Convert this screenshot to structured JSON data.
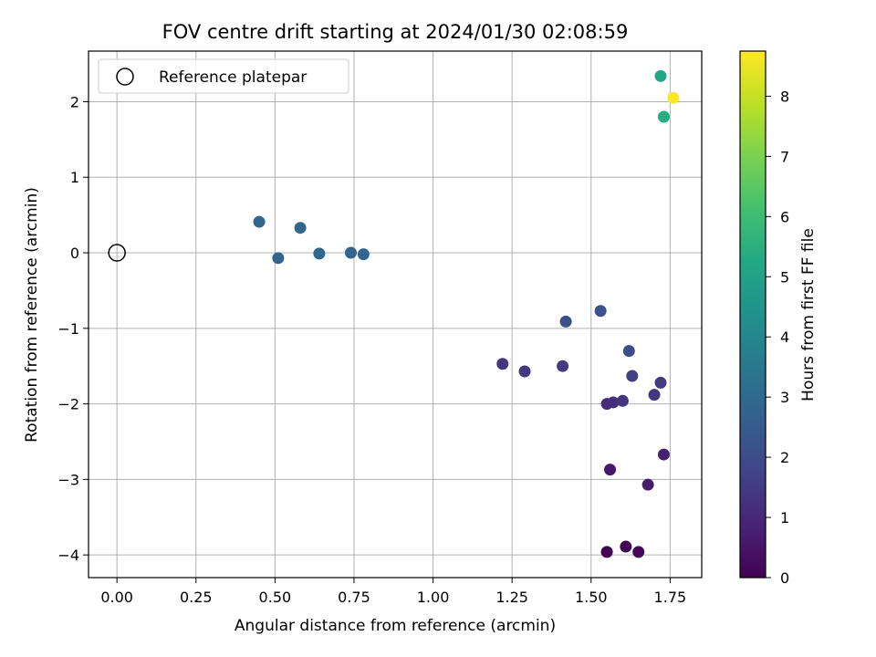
{
  "chart_data": {
    "type": "scatter",
    "title": "FOV centre drift starting at 2024/01/30 02:08:59",
    "xlabel": "Angular distance from reference (arcmin)",
    "ylabel": "Rotation from reference (arcmin)",
    "xlim": [
      -0.09,
      1.85
    ],
    "ylim": [
      -4.3,
      2.67
    ],
    "xticks": [
      0.0,
      0.25,
      0.5,
      0.75,
      1.0,
      1.25,
      1.5,
      1.75
    ],
    "xtick_labels": [
      "0.00",
      "0.25",
      "0.50",
      "0.75",
      "1.00",
      "1.25",
      "1.50",
      "1.75"
    ],
    "yticks": [
      -4,
      -3,
      -2,
      -1,
      0,
      1,
      2
    ],
    "ytick_labels": [
      "−4",
      "−3",
      "−2",
      "−1",
      "0",
      "1",
      "2"
    ],
    "grid": true,
    "legend": {
      "placement": "upper-left",
      "entries": [
        "Reference platepar"
      ]
    },
    "reference_point": {
      "x": 0.0,
      "y": 0.0
    },
    "colorbar": {
      "label": "Hours from first FF file",
      "colormap": "viridis",
      "range": [
        0,
        8.75
      ],
      "ticks": [
        0,
        1,
        2,
        3,
        4,
        5,
        6,
        7,
        8
      ],
      "tick_labels": [
        "0",
        "1",
        "2",
        "3",
        "4",
        "5",
        "6",
        "7",
        "8"
      ]
    },
    "points": [
      {
        "x": 1.55,
        "y": -3.96,
        "hours": 0.0
      },
      {
        "x": 1.61,
        "y": -3.89,
        "hours": 0.1
      },
      {
        "x": 1.65,
        "y": -3.96,
        "hours": 0.2
      },
      {
        "x": 1.56,
        "y": -2.87,
        "hours": 0.6
      },
      {
        "x": 1.68,
        "y": -3.07,
        "hours": 0.7
      },
      {
        "x": 1.73,
        "y": -2.67,
        "hours": 0.8
      },
      {
        "x": 1.55,
        "y": -2.0,
        "hours": 1.1
      },
      {
        "x": 1.57,
        "y": -1.98,
        "hours": 1.2
      },
      {
        "x": 1.6,
        "y": -1.96,
        "hours": 1.3
      },
      {
        "x": 1.7,
        "y": -1.88,
        "hours": 1.4
      },
      {
        "x": 1.72,
        "y": -1.72,
        "hours": 1.5
      },
      {
        "x": 1.22,
        "y": -1.47,
        "hours": 1.4
      },
      {
        "x": 1.29,
        "y": -1.57,
        "hours": 1.4
      },
      {
        "x": 1.41,
        "y": -1.5,
        "hours": 1.5
      },
      {
        "x": 1.63,
        "y": -1.63,
        "hours": 1.6
      },
      {
        "x": 1.62,
        "y": -1.3,
        "hours": 2.0
      },
      {
        "x": 1.42,
        "y": -0.91,
        "hours": 2.1
      },
      {
        "x": 1.53,
        "y": -0.77,
        "hours": 2.2
      },
      {
        "x": 0.45,
        "y": 0.41,
        "hours": 2.9
      },
      {
        "x": 0.51,
        "y": -0.07,
        "hours": 2.8
      },
      {
        "x": 0.58,
        "y": 0.33,
        "hours": 2.9
      },
      {
        "x": 0.64,
        "y": -0.01,
        "hours": 2.9
      },
      {
        "x": 0.74,
        "y": 0.0,
        "hours": 2.8
      },
      {
        "x": 0.78,
        "y": -0.02,
        "hours": 2.8
      },
      {
        "x": 1.72,
        "y": 2.34,
        "hours": 5.2
      },
      {
        "x": 1.73,
        "y": 1.8,
        "hours": 5.4
      },
      {
        "x": 1.76,
        "y": 2.05,
        "hours": 8.75
      }
    ]
  }
}
